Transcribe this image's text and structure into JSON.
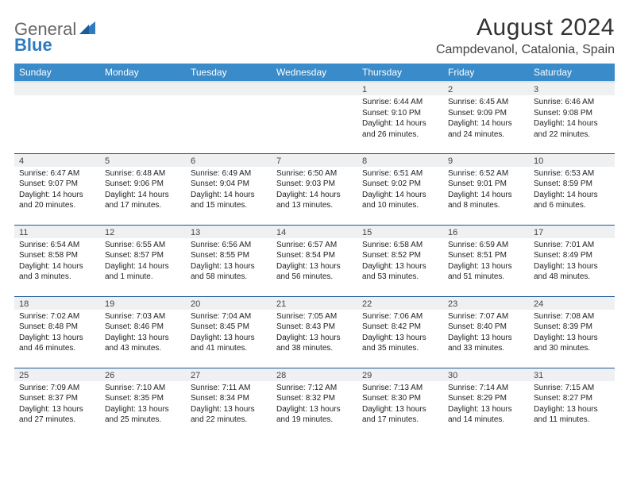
{
  "logo": {
    "word1": "General",
    "word2": "Blue"
  },
  "header": {
    "month_title": "August 2024",
    "location": "Campdevanol, Catalonia, Spain"
  },
  "colors": {
    "header_bg": "#3a8bc9",
    "header_text": "#ffffff",
    "daynum_bg": "#eef0f2",
    "row_border": "#1a5b99",
    "logo_blue": "#2f7bbf"
  },
  "weekdays": [
    "Sunday",
    "Monday",
    "Tuesday",
    "Wednesday",
    "Thursday",
    "Friday",
    "Saturday"
  ],
  "weeks": [
    [
      {
        "day": "",
        "sunrise": "",
        "sunset": "",
        "daylight": ""
      },
      {
        "day": "",
        "sunrise": "",
        "sunset": "",
        "daylight": ""
      },
      {
        "day": "",
        "sunrise": "",
        "sunset": "",
        "daylight": ""
      },
      {
        "day": "",
        "sunrise": "",
        "sunset": "",
        "daylight": ""
      },
      {
        "day": "1",
        "sunrise": "Sunrise: 6:44 AM",
        "sunset": "Sunset: 9:10 PM",
        "daylight": "Daylight: 14 hours and 26 minutes."
      },
      {
        "day": "2",
        "sunrise": "Sunrise: 6:45 AM",
        "sunset": "Sunset: 9:09 PM",
        "daylight": "Daylight: 14 hours and 24 minutes."
      },
      {
        "day": "3",
        "sunrise": "Sunrise: 6:46 AM",
        "sunset": "Sunset: 9:08 PM",
        "daylight": "Daylight: 14 hours and 22 minutes."
      }
    ],
    [
      {
        "day": "4",
        "sunrise": "Sunrise: 6:47 AM",
        "sunset": "Sunset: 9:07 PM",
        "daylight": "Daylight: 14 hours and 20 minutes."
      },
      {
        "day": "5",
        "sunrise": "Sunrise: 6:48 AM",
        "sunset": "Sunset: 9:06 PM",
        "daylight": "Daylight: 14 hours and 17 minutes."
      },
      {
        "day": "6",
        "sunrise": "Sunrise: 6:49 AM",
        "sunset": "Sunset: 9:04 PM",
        "daylight": "Daylight: 14 hours and 15 minutes."
      },
      {
        "day": "7",
        "sunrise": "Sunrise: 6:50 AM",
        "sunset": "Sunset: 9:03 PM",
        "daylight": "Daylight: 14 hours and 13 minutes."
      },
      {
        "day": "8",
        "sunrise": "Sunrise: 6:51 AM",
        "sunset": "Sunset: 9:02 PM",
        "daylight": "Daylight: 14 hours and 10 minutes."
      },
      {
        "day": "9",
        "sunrise": "Sunrise: 6:52 AM",
        "sunset": "Sunset: 9:01 PM",
        "daylight": "Daylight: 14 hours and 8 minutes."
      },
      {
        "day": "10",
        "sunrise": "Sunrise: 6:53 AM",
        "sunset": "Sunset: 8:59 PM",
        "daylight": "Daylight: 14 hours and 6 minutes."
      }
    ],
    [
      {
        "day": "11",
        "sunrise": "Sunrise: 6:54 AM",
        "sunset": "Sunset: 8:58 PM",
        "daylight": "Daylight: 14 hours and 3 minutes."
      },
      {
        "day": "12",
        "sunrise": "Sunrise: 6:55 AM",
        "sunset": "Sunset: 8:57 PM",
        "daylight": "Daylight: 14 hours and 1 minute."
      },
      {
        "day": "13",
        "sunrise": "Sunrise: 6:56 AM",
        "sunset": "Sunset: 8:55 PM",
        "daylight": "Daylight: 13 hours and 58 minutes."
      },
      {
        "day": "14",
        "sunrise": "Sunrise: 6:57 AM",
        "sunset": "Sunset: 8:54 PM",
        "daylight": "Daylight: 13 hours and 56 minutes."
      },
      {
        "day": "15",
        "sunrise": "Sunrise: 6:58 AM",
        "sunset": "Sunset: 8:52 PM",
        "daylight": "Daylight: 13 hours and 53 minutes."
      },
      {
        "day": "16",
        "sunrise": "Sunrise: 6:59 AM",
        "sunset": "Sunset: 8:51 PM",
        "daylight": "Daylight: 13 hours and 51 minutes."
      },
      {
        "day": "17",
        "sunrise": "Sunrise: 7:01 AM",
        "sunset": "Sunset: 8:49 PM",
        "daylight": "Daylight: 13 hours and 48 minutes."
      }
    ],
    [
      {
        "day": "18",
        "sunrise": "Sunrise: 7:02 AM",
        "sunset": "Sunset: 8:48 PM",
        "daylight": "Daylight: 13 hours and 46 minutes."
      },
      {
        "day": "19",
        "sunrise": "Sunrise: 7:03 AM",
        "sunset": "Sunset: 8:46 PM",
        "daylight": "Daylight: 13 hours and 43 minutes."
      },
      {
        "day": "20",
        "sunrise": "Sunrise: 7:04 AM",
        "sunset": "Sunset: 8:45 PM",
        "daylight": "Daylight: 13 hours and 41 minutes."
      },
      {
        "day": "21",
        "sunrise": "Sunrise: 7:05 AM",
        "sunset": "Sunset: 8:43 PM",
        "daylight": "Daylight: 13 hours and 38 minutes."
      },
      {
        "day": "22",
        "sunrise": "Sunrise: 7:06 AM",
        "sunset": "Sunset: 8:42 PM",
        "daylight": "Daylight: 13 hours and 35 minutes."
      },
      {
        "day": "23",
        "sunrise": "Sunrise: 7:07 AM",
        "sunset": "Sunset: 8:40 PM",
        "daylight": "Daylight: 13 hours and 33 minutes."
      },
      {
        "day": "24",
        "sunrise": "Sunrise: 7:08 AM",
        "sunset": "Sunset: 8:39 PM",
        "daylight": "Daylight: 13 hours and 30 minutes."
      }
    ],
    [
      {
        "day": "25",
        "sunrise": "Sunrise: 7:09 AM",
        "sunset": "Sunset: 8:37 PM",
        "daylight": "Daylight: 13 hours and 27 minutes."
      },
      {
        "day": "26",
        "sunrise": "Sunrise: 7:10 AM",
        "sunset": "Sunset: 8:35 PM",
        "daylight": "Daylight: 13 hours and 25 minutes."
      },
      {
        "day": "27",
        "sunrise": "Sunrise: 7:11 AM",
        "sunset": "Sunset: 8:34 PM",
        "daylight": "Daylight: 13 hours and 22 minutes."
      },
      {
        "day": "28",
        "sunrise": "Sunrise: 7:12 AM",
        "sunset": "Sunset: 8:32 PM",
        "daylight": "Daylight: 13 hours and 19 minutes."
      },
      {
        "day": "29",
        "sunrise": "Sunrise: 7:13 AM",
        "sunset": "Sunset: 8:30 PM",
        "daylight": "Daylight: 13 hours and 17 minutes."
      },
      {
        "day": "30",
        "sunrise": "Sunrise: 7:14 AM",
        "sunset": "Sunset: 8:29 PM",
        "daylight": "Daylight: 13 hours and 14 minutes."
      },
      {
        "day": "31",
        "sunrise": "Sunrise: 7:15 AM",
        "sunset": "Sunset: 8:27 PM",
        "daylight": "Daylight: 13 hours and 11 minutes."
      }
    ]
  ]
}
